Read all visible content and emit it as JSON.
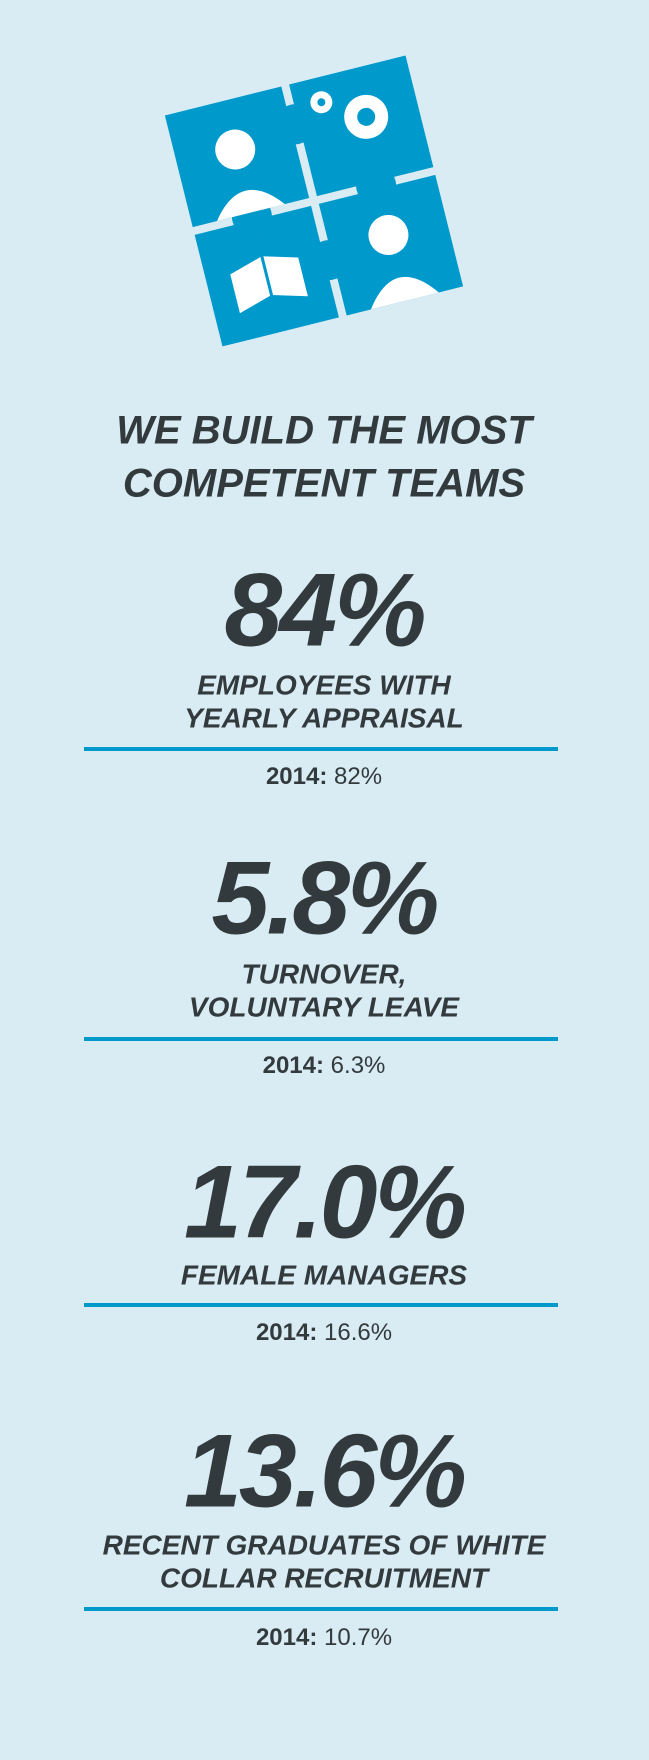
{
  "title": {
    "lines": [
      "WE BUILD THE MOST",
      "COMPETENT TEAMS"
    ]
  },
  "stats": [
    {
      "value": "84%",
      "label_lines": [
        "EMPLOYEES WITH",
        "YEARLY APPRAISAL"
      ],
      "previous_year": "2014:",
      "previous_value": "82%"
    },
    {
      "value": "5.8%",
      "label_lines": [
        "TURNOVER,",
        "VOLUNTARY LEAVE"
      ],
      "previous_year": "2014:",
      "previous_value": "6.3%"
    },
    {
      "value": "17.0%",
      "label_lines": [
        "FEMALE MANAGERS"
      ],
      "previous_year": "2014:",
      "previous_value": "16.6%"
    },
    {
      "value": "13.6%",
      "label_lines": [
        "RECENT GRADUATES OF WHITE",
        "COLLAR RECRUITMENT"
      ],
      "previous_year": "2014:",
      "previous_value": "10.7%"
    }
  ]
}
